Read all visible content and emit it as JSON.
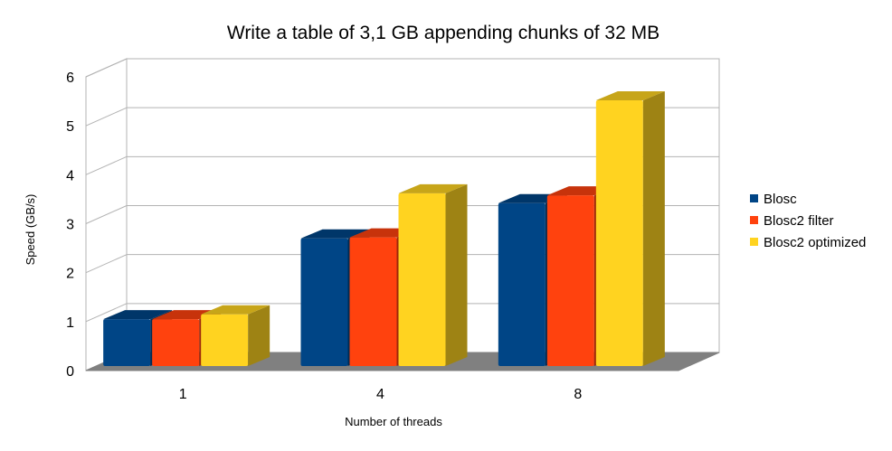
{
  "chart_data": {
    "type": "bar",
    "title": "Write a table of 3,1 GB appending chunks of 32 MB",
    "xlabel": "Number of threads",
    "ylabel": "Speed (GB/s)",
    "categories": [
      "1",
      "4",
      "8"
    ],
    "ylim": [
      0,
      6
    ],
    "yticks": [
      "0",
      "1",
      "2",
      "3",
      "4",
      "5",
      "6"
    ],
    "grid": true,
    "legend_position": "right",
    "series": [
      {
        "name": "Blosc",
        "color": "#004586",
        "values": [
          1.05,
          2.7,
          3.42
        ]
      },
      {
        "name": "Blosc2 filter",
        "color": "#ff420e",
        "values": [
          1.05,
          2.72,
          3.58
        ]
      },
      {
        "name": "Blosc2 optimized",
        "color": "#ffd320",
        "values": [
          1.15,
          3.62,
          5.52
        ]
      }
    ]
  }
}
